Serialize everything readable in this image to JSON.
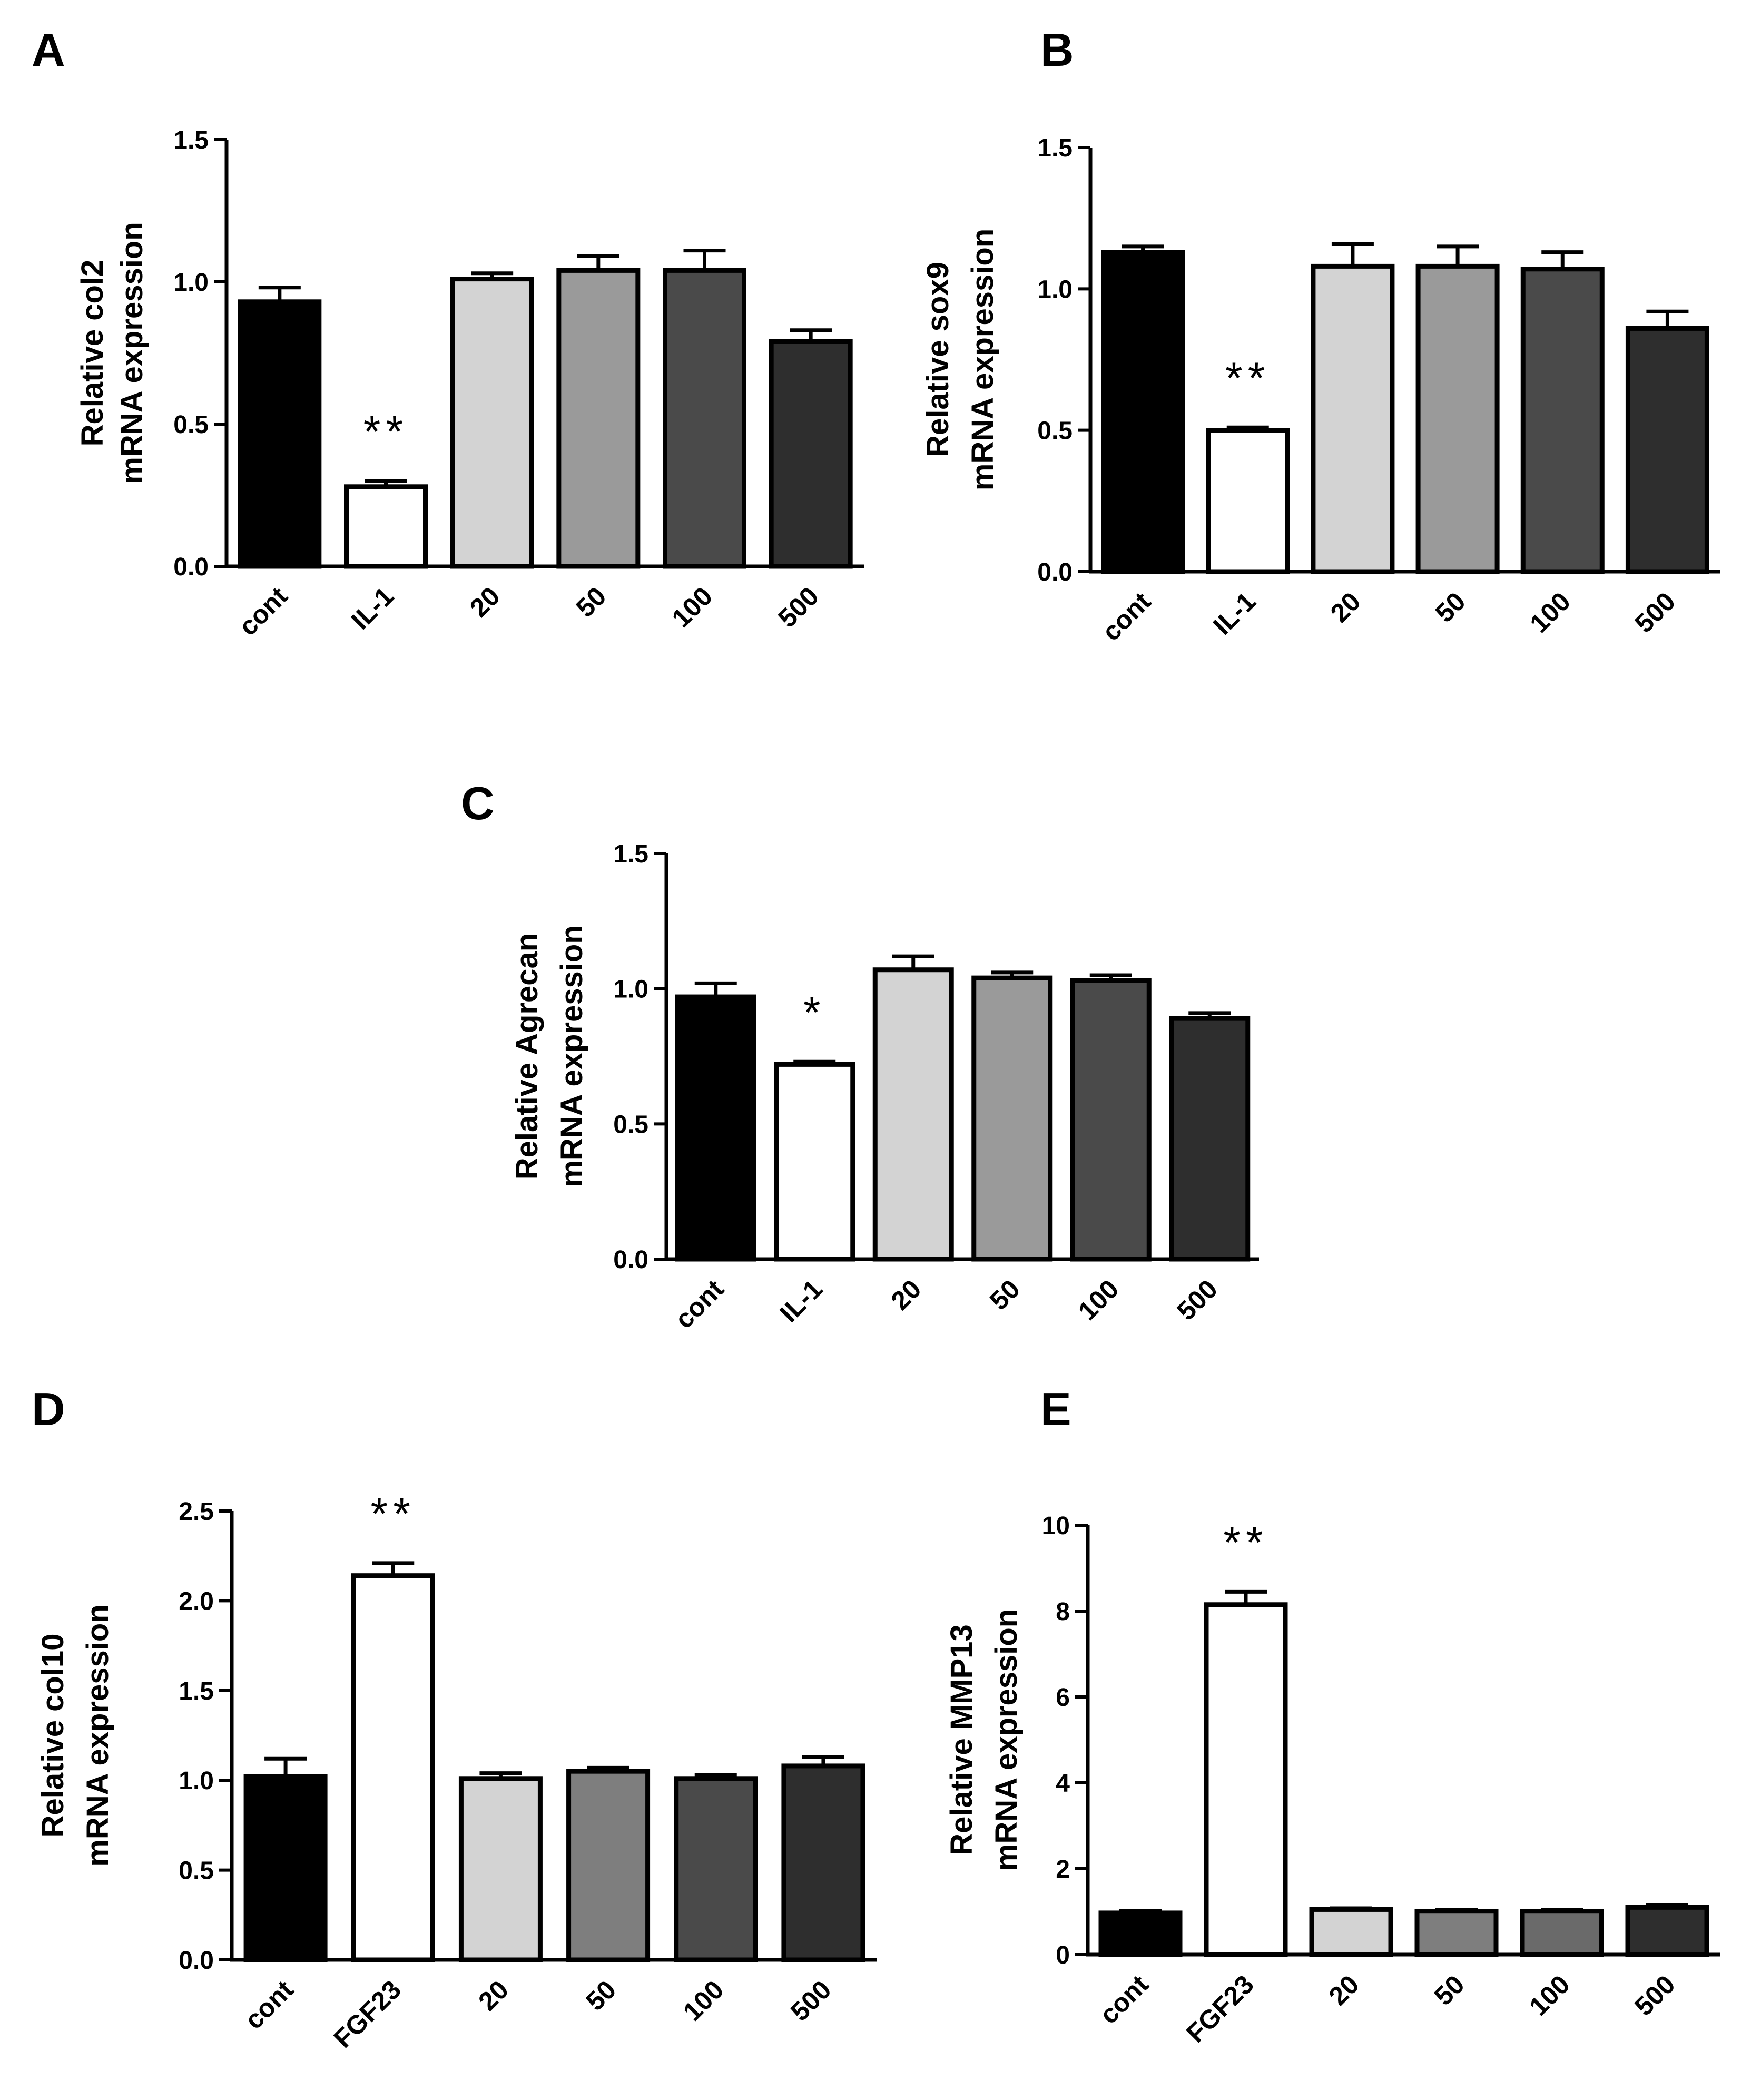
{
  "chart_data": [
    {
      "panel": "A",
      "type": "bar",
      "categories": [
        "cont",
        "IL-1",
        "20",
        "50",
        "100",
        "500"
      ],
      "values": [
        0.93,
        0.28,
        1.01,
        1.04,
        1.04,
        0.79
      ],
      "errors": [
        0.05,
        0.02,
        0.02,
        0.05,
        0.07,
        0.04
      ],
      "colors": [
        "#000000",
        "#ffffff",
        "#d3d3d3",
        "#9a9a9a",
        "#4a4a4a",
        "#2e2e2e"
      ],
      "ylabel_lines": [
        "Relative col2",
        "mRNA expression"
      ],
      "ylim": [
        0,
        1.5
      ],
      "yticks": [
        "0.0",
        "0.5",
        "1.0",
        "1.5"
      ],
      "annotations": [
        {
          "category": "IL-1",
          "text": "**"
        }
      ]
    },
    {
      "panel": "B",
      "type": "bar",
      "categories": [
        "cont",
        "IL-1",
        "20",
        "50",
        "100",
        "500"
      ],
      "values": [
        1.13,
        0.5,
        1.08,
        1.08,
        1.07,
        0.86
      ],
      "errors": [
        0.02,
        0.01,
        0.08,
        0.07,
        0.06,
        0.06
      ],
      "colors": [
        "#000000",
        "#ffffff",
        "#d3d3d3",
        "#9a9a9a",
        "#4a4a4a",
        "#2e2e2e"
      ],
      "ylabel_lines": [
        "Relative sox9",
        "mRNA expression"
      ],
      "ylim": [
        0,
        1.5
      ],
      "yticks": [
        "0.0",
        "0.5",
        "1.0",
        "1.5"
      ],
      "annotations": [
        {
          "category": "IL-1",
          "text": "**"
        }
      ]
    },
    {
      "panel": "C",
      "type": "bar",
      "categories": [
        "cont",
        "IL-1",
        "20",
        "50",
        "100",
        "500"
      ],
      "values": [
        0.97,
        0.72,
        1.07,
        1.04,
        1.03,
        0.89
      ],
      "errors": [
        0.05,
        0.01,
        0.05,
        0.02,
        0.02,
        0.02
      ],
      "colors": [
        "#000000",
        "#ffffff",
        "#d3d3d3",
        "#9a9a9a",
        "#4a4a4a",
        "#2e2e2e"
      ],
      "ylabel_lines": [
        "Relative Agrecan",
        "mRNA expression"
      ],
      "ylim": [
        0,
        1.5
      ],
      "yticks": [
        "0.0",
        "0.5",
        "1.0",
        "1.5"
      ],
      "annotations": [
        {
          "category": "IL-1",
          "text": "*"
        }
      ]
    },
    {
      "panel": "D",
      "type": "bar",
      "categories": [
        "cont",
        "FGF23",
        "20",
        "50",
        "100",
        "500"
      ],
      "values": [
        1.02,
        2.14,
        1.01,
        1.05,
        1.01,
        1.08
      ],
      "errors": [
        0.1,
        0.07,
        0.03,
        0.02,
        0.02,
        0.05
      ],
      "colors": [
        "#000000",
        "#ffffff",
        "#d3d3d3",
        "#7e7e7e",
        "#4a4a4a",
        "#2e2e2e"
      ],
      "ylabel_lines": [
        "Relative col10",
        "mRNA expression"
      ],
      "ylim": [
        0,
        2.5
      ],
      "yticks": [
        "0.0",
        "0.5",
        "1.0",
        "1.5",
        "2.0",
        "2.5"
      ],
      "annotations": [
        {
          "category": "FGF23",
          "text": "**"
        }
      ]
    },
    {
      "panel": "E",
      "type": "bar",
      "categories": [
        "cont",
        "FGF23",
        "20",
        "50",
        "100",
        "500"
      ],
      "values": [
        0.97,
        8.15,
        1.05,
        1.01,
        1.01,
        1.1
      ],
      "errors": [
        0.05,
        0.3,
        0.03,
        0.03,
        0.03,
        0.06
      ],
      "colors": [
        "#000000",
        "#ffffff",
        "#d3d3d3",
        "#7e7e7e",
        "#6a6a6a",
        "#2e2e2e"
      ],
      "ylabel_lines": [
        "Relative MMP13",
        "mRNA expression"
      ],
      "ylim": [
        0,
        10
      ],
      "yticks": [
        "0",
        "2",
        "4",
        "6",
        "8",
        "10"
      ],
      "annotations": [
        {
          "category": "FGF23",
          "text": "**"
        }
      ]
    }
  ]
}
